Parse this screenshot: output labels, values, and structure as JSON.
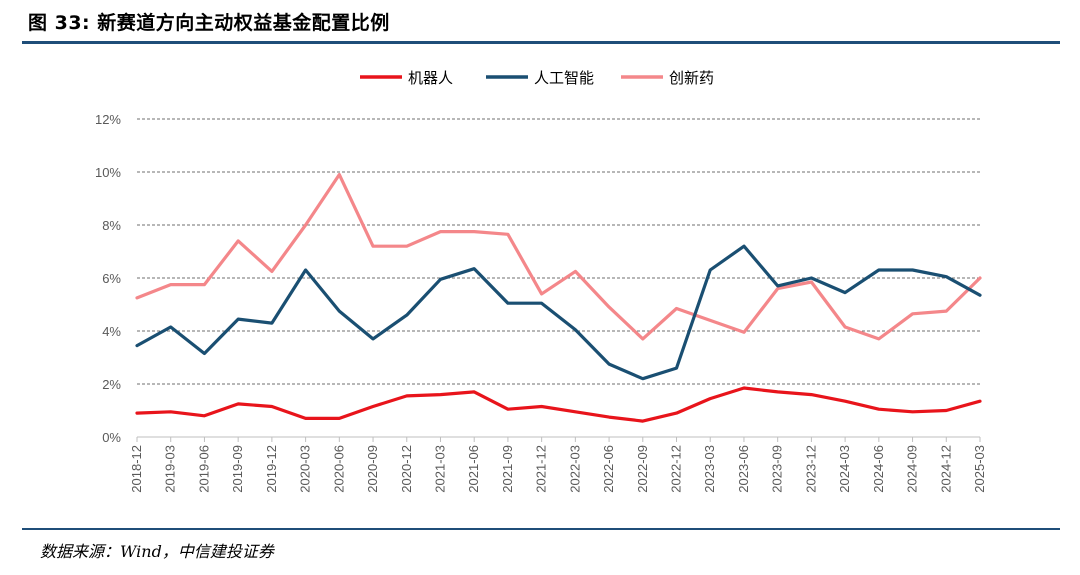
{
  "figure": {
    "title": "图 33: 新赛道方向主动权益基金配置比例",
    "source": "数据来源：Wind，中信建投证券"
  },
  "chart_data": {
    "type": "line",
    "ylim": [
      0,
      12
    ],
    "y_ticks": [
      "0%",
      "2%",
      "4%",
      "6%",
      "8%",
      "10%",
      "12%"
    ],
    "grid": "horizontal dashed",
    "legend_position": "top-center",
    "x": [
      "2018-12",
      "2019-03",
      "2019-06",
      "2019-09",
      "2019-12",
      "2020-03",
      "2020-06",
      "2020-09",
      "2020-12",
      "2021-03",
      "2021-06",
      "2021-09",
      "2021-12",
      "2022-03",
      "2022-06",
      "2022-09",
      "2022-12",
      "2023-03",
      "2023-06",
      "2023-09",
      "2023-12",
      "2024-03",
      "2024-06",
      "2024-09",
      "2024-12",
      "2025-03"
    ],
    "series": [
      {
        "name": "机器人",
        "color": "#e8141b",
        "values": [
          0.9,
          0.95,
          0.8,
          1.25,
          1.15,
          0.7,
          0.7,
          1.15,
          1.55,
          1.6,
          1.7,
          1.05,
          1.15,
          0.95,
          0.75,
          0.6,
          0.9,
          1.45,
          1.85,
          1.7,
          1.6,
          1.35,
          1.05,
          0.95,
          1.0,
          1.35
        ]
      },
      {
        "name": "人工智能",
        "color": "#1a4f72",
        "values": [
          3.45,
          4.15,
          3.15,
          4.45,
          4.3,
          6.3,
          4.75,
          3.7,
          4.6,
          5.95,
          6.35,
          5.05,
          5.05,
          4.05,
          2.75,
          2.2,
          2.6,
          6.3,
          7.2,
          5.7,
          6.0,
          5.45,
          6.3,
          6.3,
          6.05,
          5.35
        ]
      },
      {
        "name": "创新药",
        "color": "#f4878a",
        "values": [
          5.25,
          5.75,
          5.75,
          7.4,
          6.25,
          8.0,
          9.9,
          7.2,
          7.2,
          7.75,
          7.75,
          7.65,
          5.4,
          6.25,
          4.9,
          3.7,
          4.85,
          4.4,
          3.95,
          5.6,
          5.85,
          4.15,
          3.7,
          4.65,
          4.75,
          6.0
        ]
      }
    ]
  }
}
